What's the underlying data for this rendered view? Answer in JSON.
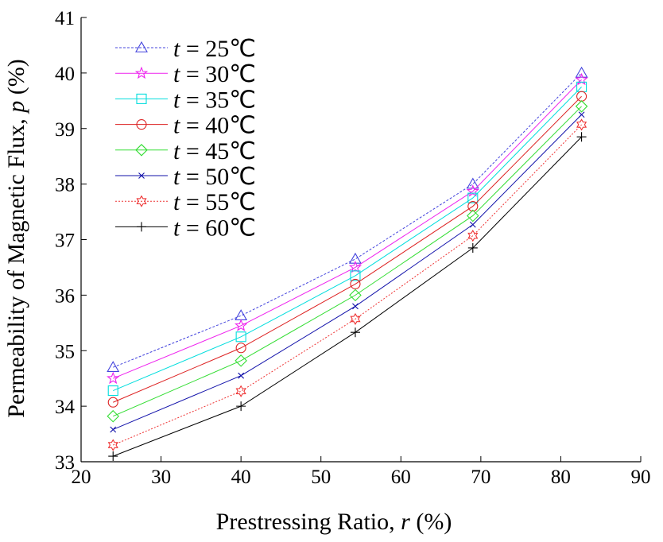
{
  "chart_data": {
    "type": "line",
    "xlabel": {
      "prefix": "Prestressing Ratio, ",
      "var": "r",
      "suffix": " (%)"
    },
    "ylabel": {
      "prefix": "Permeability of Magnetic Flux, ",
      "var": "p",
      "suffix": " (%)"
    },
    "xlim": [
      20,
      90
    ],
    "ylim": [
      33,
      41
    ],
    "xticks": [
      20,
      30,
      40,
      50,
      60,
      70,
      80,
      90
    ],
    "yticks": [
      33,
      34,
      35,
      36,
      37,
      38,
      39,
      40,
      41
    ],
    "grid": false,
    "legend_position": "top-left",
    "legend_var": "t",
    "x": [
      24,
      40,
      54.3,
      69,
      82.6
    ],
    "series": [
      {
        "name": "= 25℃",
        "color": "#4444dd",
        "marker": "triangle",
        "dash": "3,2",
        "values": [
          34.7,
          35.63,
          36.65,
          38.0,
          40.0
        ]
      },
      {
        "name": "= 30℃",
        "color": "#ee22ee",
        "marker": "star",
        "dash": "",
        "values": [
          34.5,
          35.45,
          36.5,
          37.87,
          39.88
        ]
      },
      {
        "name": "= 35℃",
        "color": "#00dddd",
        "marker": "square",
        "dash": "",
        "values": [
          34.28,
          35.25,
          36.35,
          37.75,
          39.75
        ]
      },
      {
        "name": "= 40℃",
        "color": "#dd2222",
        "marker": "circle",
        "dash": "",
        "values": [
          34.07,
          35.05,
          36.2,
          37.6,
          39.58
        ]
      },
      {
        "name": "= 45℃",
        "color": "#33dd33",
        "marker": "diamond",
        "dash": "",
        "values": [
          33.82,
          34.82,
          36.0,
          37.43,
          39.4
        ]
      },
      {
        "name": "= 50℃",
        "color": "#1111aa",
        "marker": "x",
        "dash": "",
        "values": [
          33.58,
          34.55,
          35.8,
          37.27,
          39.25
        ]
      },
      {
        "name": "= 55℃",
        "color": "#ee3333",
        "marker": "hexagram",
        "dash": "2,2",
        "values": [
          33.3,
          34.27,
          35.57,
          37.07,
          39.07
        ]
      },
      {
        "name": "= 60℃",
        "color": "#000000",
        "marker": "plus",
        "dash": "",
        "values": [
          33.1,
          34.0,
          35.33,
          36.85,
          38.85
        ]
      }
    ]
  }
}
